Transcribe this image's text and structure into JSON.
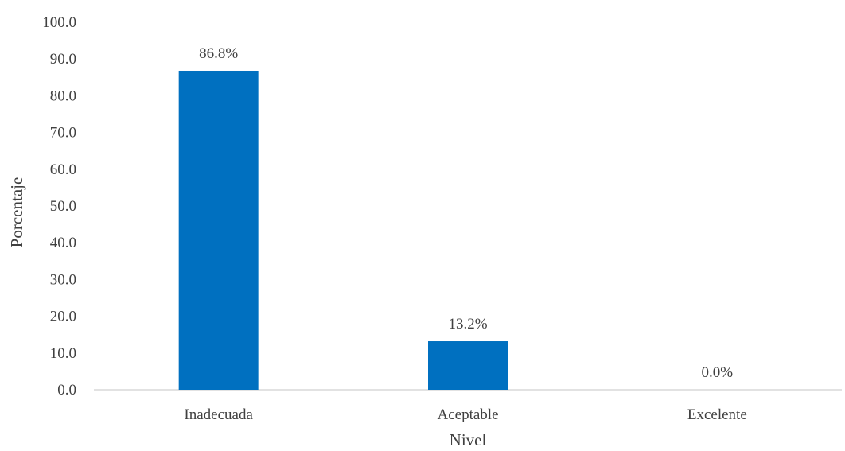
{
  "chart_data": {
    "type": "bar",
    "title": "",
    "xlabel": "Nivel",
    "ylabel": "Porcentaje",
    "categories": [
      "Inadecuada",
      "Aceptable",
      "Excelente"
    ],
    "values": [
      86.8,
      13.2,
      0.0
    ],
    "data_labels": [
      "86.8%",
      "13.2%",
      "0.0%"
    ],
    "ylim": [
      0,
      100
    ],
    "yticks": [
      0,
      10,
      20,
      30,
      40,
      50,
      60,
      70,
      80,
      90,
      100
    ],
    "ytick_labels": [
      "0.0",
      "10.0",
      "20.0",
      "30.0",
      "40.0",
      "50.0",
      "60.0",
      "70.0",
      "80.0",
      "90.0",
      "100.0"
    ],
    "grid": false,
    "legend": "none",
    "bar_color": "#0070C0",
    "axis_color": "#D9D9D9",
    "text_color": "#404040"
  }
}
